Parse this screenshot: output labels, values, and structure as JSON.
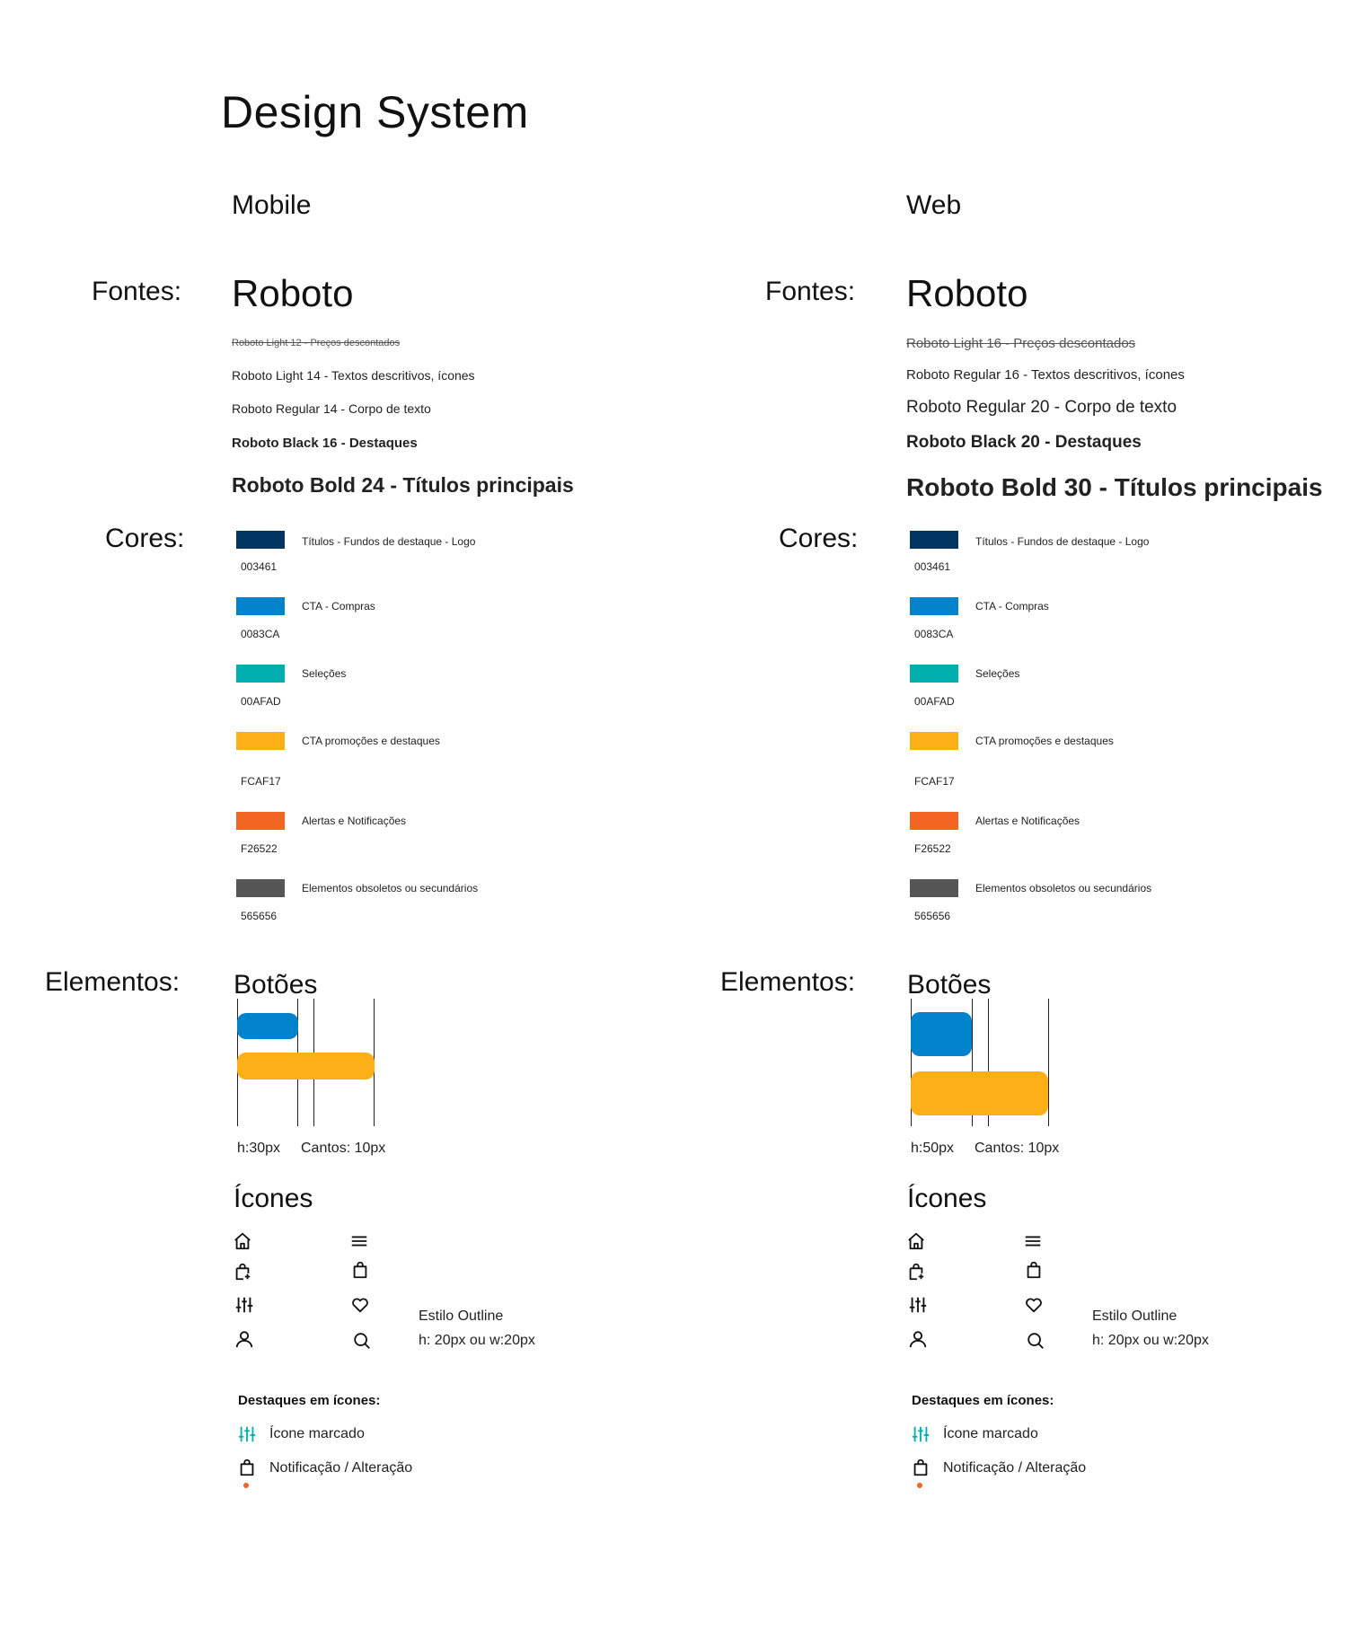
{
  "page_title": "Design System",
  "colors": {
    "navy": "#003461",
    "blue": "#0083CA",
    "teal": "#00AFAD",
    "yellow": "#FCAF17",
    "orange": "#F26522",
    "gray": "#565656"
  },
  "mobile": {
    "heading": "Mobile",
    "fonts_label": "Fontes:",
    "font_family": "Roboto",
    "font_samples": [
      "Roboto Light 12 - Preços descontados",
      "Roboto Light 14 - Textos descritivos, ícones",
      "Roboto Regular 14 - Corpo de texto",
      "Roboto Black 16 - Destaques",
      "Roboto Bold 24 - Títulos principais"
    ],
    "colors_label": "Cores:",
    "color_items": [
      {
        "desc": "Títulos - Fundos de destaque - Logo",
        "hex": "003461"
      },
      {
        "desc": "CTA - Compras",
        "hex": "0083CA"
      },
      {
        "desc": "Seleções",
        "hex": "00AFAD"
      },
      {
        "desc": "CTA promoções e destaques",
        "hex": "FCAF17"
      },
      {
        "desc": "Alertas e Notificações",
        "hex": "F26522"
      },
      {
        "desc": "Elementos obsoletos ou secundários",
        "hex": "565656"
      }
    ],
    "elements_label": "Elementos:",
    "buttons_heading": "Botões",
    "button_height": "h:30px",
    "button_corners": "Cantos: 10px",
    "icons_heading": "Ícones",
    "icons": [
      "home-icon",
      "menu-icon",
      "bag-add-icon",
      "bag-icon",
      "sliders-icon",
      "heart-icon",
      "user-icon",
      "search-icon"
    ],
    "icon_style": "Estilo Outline",
    "icon_size": "h: 20px ou w:20px",
    "highlights_heading": "Destaques em ícones:",
    "highlight_marked": "Ícone marcado",
    "highlight_notification": "Notificação / Alteração"
  },
  "web": {
    "heading": "Web",
    "fonts_label": "Fontes:",
    "font_family": "Roboto",
    "font_samples": [
      "Roboto Light 16 - Preços descontados",
      "Roboto Regular 16  - Textos descritivos, ícones",
      "Roboto Regular 20 - Corpo de texto",
      "Roboto Black 20 - Destaques",
      "Roboto Bold 30 - Títulos principais"
    ],
    "colors_label": "Cores:",
    "color_items": [
      {
        "desc": "Títulos - Fundos de destaque - Logo",
        "hex": "003461"
      },
      {
        "desc": "CTA - Compras",
        "hex": "0083CA"
      },
      {
        "desc": "Seleções",
        "hex": "00AFAD"
      },
      {
        "desc": "CTA promoções e destaques",
        "hex": "FCAF17"
      },
      {
        "desc": "Alertas e Notificações",
        "hex": "F26522"
      },
      {
        "desc": "Elementos obsoletos ou secundários",
        "hex": "565656"
      }
    ],
    "elements_label": "Elementos:",
    "buttons_heading": "Botões",
    "button_height": "h:50px",
    "button_corners": "Cantos: 10px",
    "icons_heading": "Ícones",
    "icons": [
      "home-icon",
      "menu-icon",
      "bag-add-icon",
      "bag-icon",
      "sliders-icon",
      "heart-icon",
      "user-icon",
      "search-icon"
    ],
    "icon_style": "Estilo Outline",
    "icon_size": "h: 20px ou w:20px",
    "highlights_heading": "Destaques em ícones:",
    "highlight_marked": "Ícone marcado",
    "highlight_notification": "Notificação / Alteração"
  }
}
